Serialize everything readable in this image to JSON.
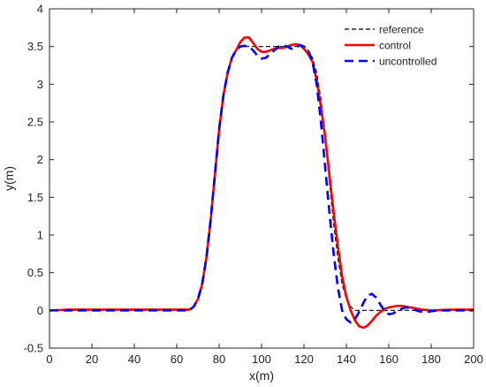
{
  "chart_data": {
    "type": "line",
    "xlabel": "x(m)",
    "ylabel": "y(m)",
    "xlim": [
      0,
      200
    ],
    "ylim": [
      -0.5,
      4
    ],
    "xticks": [
      0,
      20,
      40,
      60,
      80,
      100,
      120,
      140,
      160,
      180,
      200
    ],
    "yticks": [
      -0.5,
      0,
      0.5,
      1,
      1.5,
      2,
      2.5,
      3,
      3.5,
      4
    ],
    "xtick_labels": [
      "0",
      "20",
      "40",
      "60",
      "80",
      "100",
      "120",
      "140",
      "160",
      "180",
      "200"
    ],
    "ytick_labels": [
      "-0.5",
      "0",
      "0.5",
      "1",
      "1.5",
      "2",
      "2.5",
      "3",
      "3.5",
      "4"
    ],
    "grid": false,
    "legend_position": "top-right",
    "series": [
      {
        "name": "reference",
        "color": "#000000",
        "style": "dashed-thin",
        "points": [
          [
            0,
            0
          ],
          [
            66,
            0
          ],
          [
            68,
            0.05
          ],
          [
            70,
            0.15
          ],
          [
            72,
            0.35
          ],
          [
            74,
            0.7
          ],
          [
            76,
            1.2
          ],
          [
            78,
            1.8
          ],
          [
            80,
            2.4
          ],
          [
            82,
            2.85
          ],
          [
            84,
            3.15
          ],
          [
            86,
            3.35
          ],
          [
            88,
            3.45
          ],
          [
            90,
            3.5
          ],
          [
            92,
            3.5
          ],
          [
            120,
            3.5
          ],
          [
            122,
            3.45
          ],
          [
            124,
            3.35
          ],
          [
            126,
            3.15
          ],
          [
            128,
            2.8
          ],
          [
            130,
            2.3
          ],
          [
            132,
            1.7
          ],
          [
            134,
            1.15
          ],
          [
            136,
            0.7
          ],
          [
            138,
            0.35
          ],
          [
            140,
            0.15
          ],
          [
            142,
            0.05
          ],
          [
            144,
            0
          ],
          [
            200,
            0
          ]
        ]
      },
      {
        "name": "control",
        "color": "#ff0000",
        "style": "solid",
        "points": [
          [
            0,
            0
          ],
          [
            10,
            0.01
          ],
          [
            30,
            0.01
          ],
          [
            50,
            0.01
          ],
          [
            64,
            0.01
          ],
          [
            66,
            0.01
          ],
          [
            68,
            0.05
          ],
          [
            70,
            0.15
          ],
          [
            72,
            0.35
          ],
          [
            74,
            0.7
          ],
          [
            76,
            1.2
          ],
          [
            78,
            1.8
          ],
          [
            80,
            2.4
          ],
          [
            82,
            2.85
          ],
          [
            84,
            3.15
          ],
          [
            86,
            3.35
          ],
          [
            88,
            3.45
          ],
          [
            90,
            3.56
          ],
          [
            92,
            3.62
          ],
          [
            94,
            3.62
          ],
          [
            96,
            3.55
          ],
          [
            98,
            3.47
          ],
          [
            100,
            3.43
          ],
          [
            102,
            3.43
          ],
          [
            104,
            3.45
          ],
          [
            106,
            3.47
          ],
          [
            108,
            3.48
          ],
          [
            110,
            3.48
          ],
          [
            112,
            3.5
          ],
          [
            114,
            3.52
          ],
          [
            116,
            3.53
          ],
          [
            118,
            3.52
          ],
          [
            120,
            3.47
          ],
          [
            122,
            3.4
          ],
          [
            124,
            3.3
          ],
          [
            126,
            3.05
          ],
          [
            128,
            2.7
          ],
          [
            130,
            2.3
          ],
          [
            132,
            1.8
          ],
          [
            134,
            1.3
          ],
          [
            136,
            0.85
          ],
          [
            138,
            0.45
          ],
          [
            140,
            0.18
          ],
          [
            142,
            0.0
          ],
          [
            144,
            -0.13
          ],
          [
            146,
            -0.21
          ],
          [
            148,
            -0.23
          ],
          [
            150,
            -0.2
          ],
          [
            152,
            -0.14
          ],
          [
            154,
            -0.07
          ],
          [
            156,
            -0.02
          ],
          [
            158,
            0.02
          ],
          [
            160,
            0.04
          ],
          [
            162,
            0.05
          ],
          [
            164,
            0.06
          ],
          [
            166,
            0.06
          ],
          [
            168,
            0.05
          ],
          [
            170,
            0.04
          ],
          [
            172,
            0.03
          ],
          [
            174,
            0.02
          ],
          [
            176,
            0.01
          ],
          [
            180,
            0.0
          ],
          [
            190,
            0.01
          ],
          [
            200,
            0.01
          ]
        ]
      },
      {
        "name": "uncontrolled",
        "color": "#0000ff",
        "style": "dashed-thick",
        "points": [
          [
            0,
            0
          ],
          [
            66,
            0
          ],
          [
            68,
            0.05
          ],
          [
            70,
            0.15
          ],
          [
            72,
            0.35
          ],
          [
            74,
            0.7
          ],
          [
            76,
            1.2
          ],
          [
            78,
            1.8
          ],
          [
            80,
            2.4
          ],
          [
            82,
            2.85
          ],
          [
            84,
            3.15
          ],
          [
            86,
            3.35
          ],
          [
            88,
            3.45
          ],
          [
            90,
            3.5
          ],
          [
            92,
            3.51
          ],
          [
            94,
            3.5
          ],
          [
            96,
            3.45
          ],
          [
            98,
            3.38
          ],
          [
            100,
            3.34
          ],
          [
            102,
            3.35
          ],
          [
            104,
            3.4
          ],
          [
            106,
            3.45
          ],
          [
            108,
            3.5
          ],
          [
            110,
            3.52
          ],
          [
            112,
            3.5
          ],
          [
            114,
            3.47
          ],
          [
            116,
            3.48
          ],
          [
            118,
            3.52
          ],
          [
            120,
            3.5
          ],
          [
            122,
            3.45
          ],
          [
            124,
            3.3
          ],
          [
            126,
            3.0
          ],
          [
            128,
            2.5
          ],
          [
            130,
            1.9
          ],
          [
            132,
            1.3
          ],
          [
            134,
            0.75
          ],
          [
            136,
            0.3
          ],
          [
            138,
            0.0
          ],
          [
            140,
            -0.12
          ],
          [
            142,
            -0.16
          ],
          [
            144,
            -0.12
          ],
          [
            146,
            -0.02
          ],
          [
            148,
            0.1
          ],
          [
            150,
            0.2
          ],
          [
            152,
            0.22
          ],
          [
            154,
            0.17
          ],
          [
            156,
            0.08
          ],
          [
            158,
            -0.01
          ],
          [
            160,
            -0.05
          ],
          [
            162,
            -0.04
          ],
          [
            164,
            -0.01
          ],
          [
            166,
            0.02
          ],
          [
            168,
            0.04
          ],
          [
            170,
            0.03
          ],
          [
            172,
            0.01
          ],
          [
            174,
            -0.01
          ],
          [
            176,
            -0.02
          ],
          [
            178,
            -0.02
          ],
          [
            180,
            -0.01
          ],
          [
            184,
            0.0
          ],
          [
            190,
            0.0
          ],
          [
            200,
            0.0
          ]
        ]
      }
    ]
  }
}
